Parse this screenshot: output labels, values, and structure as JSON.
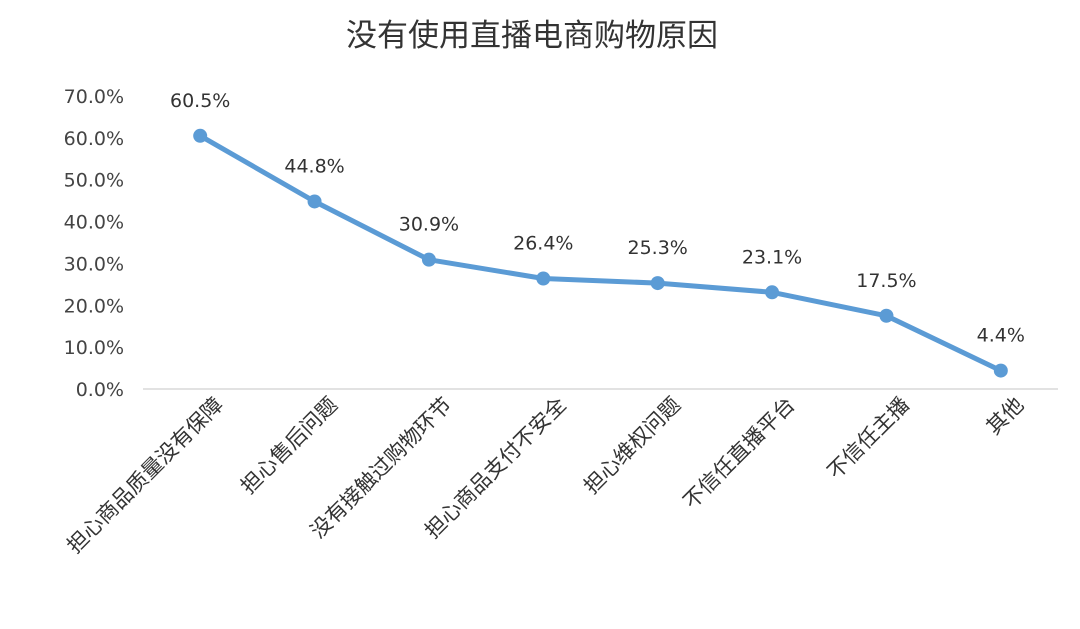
{
  "chart_data": {
    "type": "line",
    "title": "没有使用直播电商购物原因",
    "xlabel": "",
    "ylabel": "",
    "categories": [
      "担心商品质量没有保障",
      "担心售后问题",
      "没有接触过购物环节",
      "担心商品支付不安全",
      "担心维权问题",
      "不信任直播平台",
      "不信任主播",
      "其他"
    ],
    "series": [
      {
        "name": "",
        "values": [
          60.5,
          44.8,
          30.9,
          26.4,
          25.3,
          23.1,
          17.5,
          4.4
        ],
        "labels": [
          "60.5%",
          "44.8%",
          "30.9%",
          "26.4%",
          "25.3%",
          "23.1%",
          "17.5%",
          "4.4%"
        ]
      }
    ],
    "ylim": [
      0,
      70
    ],
    "y_ticks": [
      0,
      10,
      20,
      30,
      40,
      50,
      60,
      70
    ],
    "y_tick_labels": [
      "0.0%",
      "10.0%",
      "20.0%",
      "30.0%",
      "40.0%",
      "50.0%",
      "60.0%",
      "70.0%"
    ],
    "grid": false,
    "legend": "none",
    "line_color": "#5b9bd5",
    "axis_color": "#d9d9d9"
  }
}
